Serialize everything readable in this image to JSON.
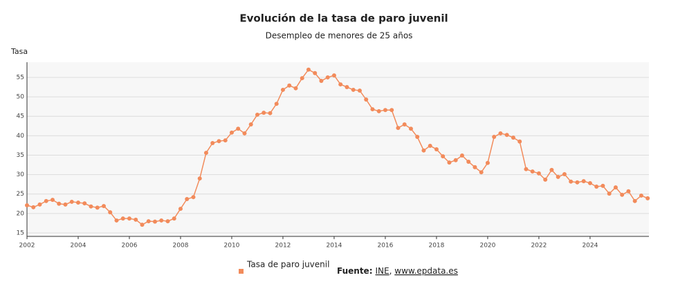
{
  "chart_data": {
    "type": "line",
    "title": "Evolución de la tasa de paro juvenil",
    "subtitle": "Desempleo de menores de 25 años",
    "y_label": "Tasa",
    "x": [
      2002,
      2002.25,
      2002.5,
      2002.75,
      2003,
      2003.25,
      2003.5,
      2003.75,
      2004,
      2004.25,
      2004.5,
      2004.75,
      2005,
      2005.25,
      2005.5,
      2005.75,
      2006,
      2006.25,
      2006.5,
      2006.75,
      2007,
      2007.25,
      2007.5,
      2007.75,
      2008,
      2008.25,
      2008.5,
      2008.75,
      2009,
      2009.25,
      2009.5,
      2009.75,
      2010,
      2010.25,
      2010.5,
      2010.75,
      2011,
      2011.25,
      2011.5,
      2011.75,
      2012,
      2012.25,
      2012.5,
      2012.75,
      2013,
      2013.25,
      2013.5,
      2013.75,
      2014,
      2014.25,
      2014.5,
      2014.75,
      2015,
      2015.25,
      2015.5,
      2015.75,
      2016,
      2016.25,
      2016.5,
      2016.75,
      2017,
      2017.25,
      2017.5,
      2017.75,
      2018,
      2018.25,
      2018.5,
      2018.75,
      2019,
      2019.25,
      2019.5,
      2019.75,
      2020,
      2020.25,
      2020.5,
      2020.75,
      2021,
      2021.25,
      2021.5,
      2021.75,
      2022,
      2022.25,
      2022.5,
      2022.75,
      2023,
      2023.25,
      2023.5,
      2023.75,
      2024,
      2024.25,
      2024.5,
      2024.75,
      2025,
      2025.25,
      2025.5,
      2025.75,
      2026,
      2026.25
    ],
    "series": [
      {
        "name": "Tasa de paro juvenil",
        "color": "#f28b5b",
        "values": [
          22.1,
          21.6,
          22.3,
          23.2,
          23.5,
          22.5,
          22.3,
          23.0,
          22.8,
          22.6,
          21.8,
          21.5,
          21.9,
          20.3,
          18.2,
          18.7,
          18.7,
          18.4,
          17.1,
          18.0,
          17.9,
          18.2,
          18.0,
          18.7,
          21.2,
          23.7,
          24.2,
          29.0,
          35.6,
          38.1,
          38.6,
          38.8,
          40.8,
          41.8,
          40.6,
          42.9,
          45.4,
          45.9,
          45.8,
          48.2,
          51.8,
          52.9,
          52.2,
          54.8,
          57.0,
          56.1,
          54.1,
          55.0,
          55.5,
          53.2,
          52.5,
          51.8,
          51.6,
          49.3,
          46.8,
          46.3,
          46.6,
          46.6,
          42.0,
          42.9,
          41.8,
          39.7,
          36.2,
          37.4,
          36.5,
          34.7,
          33.1,
          33.7,
          34.9,
          33.3,
          31.9,
          30.6,
          33.0,
          39.7,
          40.6,
          40.2,
          39.5,
          38.5,
          31.4,
          30.8,
          30.3,
          28.7,
          31.2,
          29.4,
          30.1,
          28.2,
          28.0,
          28.3,
          27.8,
          26.9,
          27.1,
          25.1,
          26.7,
          24.8,
          25.7,
          23.2,
          24.6,
          23.9
        ]
      }
    ],
    "xlim": [
      2002,
      2026.3
    ],
    "xticks": [
      2002,
      2004,
      2006,
      2008,
      2010,
      2012,
      2014,
      2016,
      2018,
      2020,
      2022,
      2024
    ],
    "ylim": [
      14.1,
      58.9
    ],
    "yticks": [
      15,
      20,
      25,
      30,
      35,
      40,
      45,
      50,
      55
    ],
    "grid": true,
    "legend": "bottom",
    "source": {
      "label": "Fuente:",
      "parts": [
        "INE",
        ", ",
        "www.epdata.es"
      ]
    }
  }
}
